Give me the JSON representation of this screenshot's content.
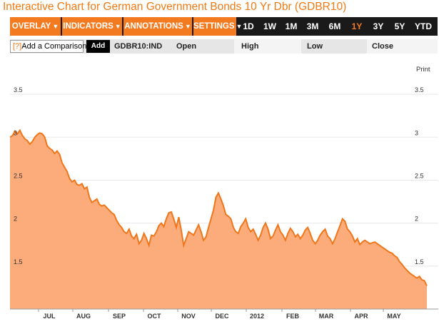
{
  "page_title": "Interactive Chart for German Government Bonds 10 Yr Dbr (GDBR10)",
  "toolbar": {
    "menus": [
      "OVERLAY",
      "INDICATORS",
      "ANNOTATIONS",
      "SETTINGS"
    ],
    "ranges": [
      "1D",
      "1W",
      "1M",
      "3M",
      "6M",
      "1Y",
      "3Y",
      "5Y",
      "YTD"
    ],
    "active_range": "1Y"
  },
  "infobar": {
    "help": "[?]",
    "comparison_label": "Add a Comparison",
    "add_label": "Add",
    "ticker": "GDBR10:IND",
    "open_label": "Open",
    "high_label": "High",
    "low_label": "Low",
    "close_label": "Close"
  },
  "print_label": "Print",
  "colors": {
    "accent": "#f47a20",
    "area_fill": "#fbac7a",
    "line": "#f0761b",
    "toolbar_bg": "#1a1a1a"
  },
  "chart_data": {
    "type": "area",
    "xlabels": [
      "JUL",
      "AUG",
      "SEP",
      "OCT",
      "NOV",
      "DEC",
      "2012",
      "FEB",
      "MAR",
      "APR",
      "MAY"
    ],
    "y_ticks": [
      1.5,
      2,
      2.5,
      3,
      3.5
    ],
    "ylim": [
      1.0,
      3.75
    ],
    "grid": "horizontal",
    "series": [
      {
        "values": [
          3.0,
          3.02,
          3.07,
          3.04,
          3.08,
          3.02,
          2.98,
          2.96,
          2.92,
          2.95,
          3.0,
          3.03,
          3.05,
          3.04,
          3.0,
          2.9,
          2.87,
          2.85,
          2.81,
          2.84,
          2.8,
          2.7,
          2.65,
          2.6,
          2.52,
          2.48,
          2.5,
          2.45,
          2.44,
          2.46,
          2.4,
          2.42,
          2.3,
          2.24,
          2.26,
          2.28,
          2.22,
          2.2,
          2.21,
          2.18,
          2.15,
          2.12,
          2.1,
          2.03,
          1.98,
          1.95,
          1.9,
          1.88,
          1.93,
          1.85,
          1.82,
          1.87,
          1.76,
          1.8,
          1.88,
          1.82,
          1.74,
          1.86,
          1.85,
          1.9,
          1.97,
          2.0,
          1.96,
          2.05,
          2.12,
          2.13,
          2.05,
          1.95,
          2.07,
          1.92,
          1.74,
          1.82,
          1.9,
          1.88,
          1.86,
          1.92,
          1.98,
          1.9,
          1.8,
          1.84,
          1.95,
          2.05,
          2.15,
          2.3,
          2.35,
          2.28,
          2.2,
          2.1,
          2.08,
          2.05,
          1.95,
          1.9,
          1.88,
          1.96,
          2.0,
          2.05,
          1.95,
          1.9,
          1.93,
          1.87,
          1.8,
          1.86,
          1.95,
          2.0,
          1.93,
          1.82,
          1.85,
          1.92,
          1.98,
          1.9,
          1.86,
          1.8,
          1.88,
          1.94,
          1.9,
          1.84,
          1.87,
          1.82,
          1.86,
          1.92,
          1.95,
          1.88,
          1.8,
          1.76,
          1.8,
          1.86,
          1.9,
          1.93,
          1.85,
          1.82,
          1.76,
          1.82,
          1.9,
          1.97,
          2.05,
          2.02,
          1.93,
          1.9,
          1.85,
          1.78,
          1.82,
          1.75,
          1.78,
          1.8,
          1.78,
          1.76,
          1.77,
          1.78,
          1.76,
          1.74,
          1.72,
          1.7,
          1.68,
          1.66,
          1.65,
          1.62,
          1.6,
          1.55,
          1.52,
          1.48,
          1.45,
          1.42,
          1.4,
          1.38,
          1.36,
          1.38,
          1.34,
          1.33,
          1.27
        ]
      }
    ]
  }
}
